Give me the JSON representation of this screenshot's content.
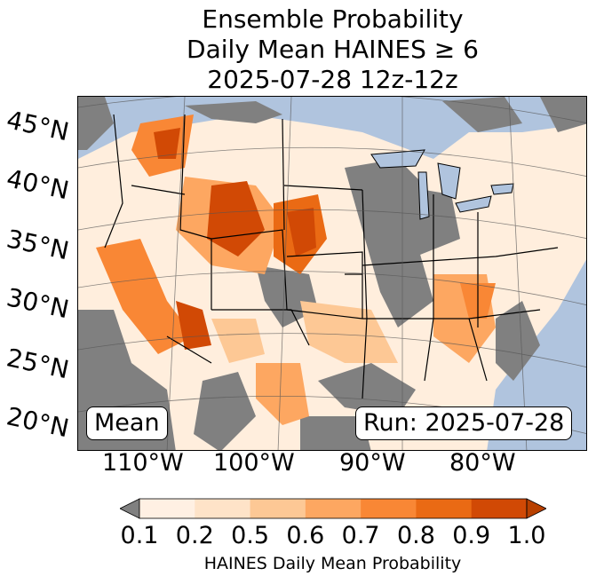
{
  "title": {
    "line1": "Ensemble Probability",
    "line2": "Daily Mean HAINES ≥ 6",
    "line3": "2025-07-28 12z-12z"
  },
  "map": {
    "lat_labels": [
      "45°N",
      "40°N",
      "35°N",
      "30°N",
      "25°N",
      "20°N"
    ],
    "lon_labels": [
      "110°W",
      "100°W",
      "90°W",
      "80°W"
    ],
    "stat_label": "Mean",
    "run_label": "Run: 2025-07-28",
    "colors": {
      "ocean": "#b0c4de",
      "no_data": "#808080",
      "lakes": "#b0c4de"
    }
  },
  "colorbar": {
    "label": "HAINES Daily Mean Probability",
    "ticks": [
      "0.1",
      "0.2",
      "0.5",
      "0.6",
      "0.7",
      "0.8",
      "0.9",
      "1.0"
    ],
    "under_color": "#808080",
    "over_color": "#b84000",
    "bin_colors": [
      "#fff0e3",
      "#fee3c8",
      "#fdc895",
      "#fda761",
      "#f98735",
      "#ea6a14",
      "#d14905"
    ]
  }
}
